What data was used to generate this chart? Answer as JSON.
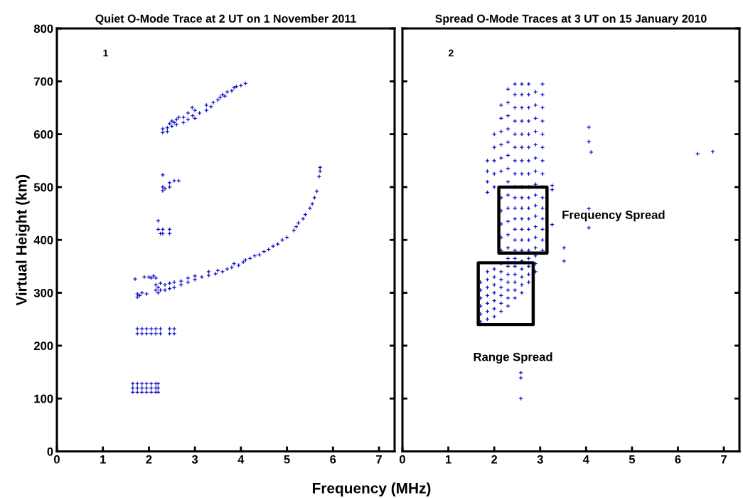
{
  "chart_data": [
    {
      "type": "scatter",
      "title": "Quiet O-Mode Trace at 2 UT on 1 November 2011",
      "xlabel": "Frequency (MHz)",
      "ylabel": "Virtual Height (km)",
      "xlim": [
        0,
        7.34
      ],
      "xticks": [
        0,
        1,
        2,
        3,
        4,
        5,
        6,
        7
      ],
      "ylim": [
        0,
        800
      ],
      "yticks": [
        0,
        100,
        200,
        300,
        400,
        500,
        600,
        700,
        800
      ],
      "grid": false,
      "marker": "cross",
      "annotations": [
        "1"
      ],
      "series": [
        {
          "color": "#1010c8",
          "x": [
            2.3,
            2.3,
            2.4,
            2.4,
            2.45,
            2.5,
            2.5,
            2.55,
            2.6,
            2.6,
            2.65,
            2.75,
            2.75,
            2.85,
            2.85,
            2.94,
            2.95,
            3.0,
            3.0,
            3.1,
            3.25,
            3.25,
            3.35,
            3.4,
            3.5,
            3.55,
            3.6,
            3.65,
            3.7,
            3.8,
            3.85,
            3.9,
            4.0,
            4.1,
            2.3,
            2.3,
            2.3,
            2.35,
            2.45,
            2.45,
            2.55,
            2.65,
            2.2,
            2.2,
            2.25,
            2.3,
            2.3,
            2.45,
            2.45,
            2.15,
            2.15,
            2.2,
            2.2,
            2.25,
            2.25,
            2.35,
            2.35,
            2.45,
            2.45,
            2.55,
            2.55,
            2.7,
            2.7,
            2.85,
            2.85,
            3.0,
            3.0,
            3.15,
            3.3,
            3.3,
            3.45,
            3.5,
            3.6,
            3.7,
            3.8,
            3.85,
            3.95,
            4.05,
            4.1,
            4.2,
            4.3,
            4.4,
            4.5,
            4.6,
            4.7,
            4.8,
            4.9,
            5.0,
            5.15,
            5.2,
            5.25,
            5.35,
            5.4,
            5.5,
            5.55,
            5.6,
            5.65,
            5.7,
            5.72,
            5.72,
            1.7,
            1.75,
            1.75,
            1.8,
            1.85,
            1.9,
            1.95,
            2.0,
            2.05,
            2.1,
            2.15,
            1.75,
            1.75,
            1.85,
            1.85,
            1.95,
            1.95,
            2.05,
            2.05,
            2.15,
            2.15,
            2.25,
            2.25,
            2.45,
            2.45,
            2.55,
            2.55,
            1.65,
            1.65,
            1.65,
            1.75,
            1.75,
            1.75,
            1.85,
            1.85,
            1.85,
            1.95,
            1.95,
            1.95,
            2.05,
            2.05,
            2.05,
            2.15,
            2.15,
            2.15,
            2.2,
            2.2,
            2.2
          ],
          "values": [
            603,
            610,
            605,
            612,
            620,
            615,
            625,
            622,
            628,
            618,
            632,
            632,
            622,
            628,
            640,
            650,
            635,
            630,
            645,
            640,
            645,
            655,
            652,
            660,
            665,
            670,
            675,
            672,
            680,
            682,
            688,
            690,
            692,
            696,
            523,
            500,
            493,
            497,
            500,
            508,
            512,
            512,
            436,
            420,
            412,
            420,
            412,
            420,
            412,
            305,
            315,
            300,
            310,
            305,
            318,
            305,
            315,
            308,
            318,
            310,
            320,
            315,
            322,
            320,
            328,
            325,
            332,
            330,
            333,
            340,
            336,
            342,
            340,
            345,
            348,
            355,
            352,
            358,
            362,
            365,
            370,
            372,
            378,
            382,
            388,
            392,
            400,
            405,
            418,
            425,
            432,
            440,
            448,
            460,
            468,
            480,
            492,
            520,
            530,
            537,
            326,
            292,
            298,
            295,
            300,
            330,
            298,
            330,
            328,
            332,
            328,
            223,
            232,
            223,
            232,
            223,
            232,
            223,
            232,
            223,
            232,
            223,
            232,
            223,
            232,
            223,
            232,
            112,
            120,
            128,
            112,
            120,
            128,
            112,
            120,
            128,
            112,
            120,
            128,
            112,
            120,
            128,
            112,
            120,
            128,
            112,
            120,
            128
          ]
        }
      ]
    },
    {
      "type": "scatter",
      "title": "Spread O-Mode Traces at 3 UT on 15 January 2010",
      "xlim": [
        0,
        7.34
      ],
      "xticks": [
        0,
        1,
        2,
        3,
        4,
        5,
        6,
        7
      ],
      "ylim": [
        0,
        800
      ],
      "yticks": [
        0,
        100,
        200,
        300,
        400,
        500,
        600,
        700,
        800
      ],
      "tick_labels": "x",
      "grid": false,
      "marker": "cross",
      "annotations": [
        "2",
        "Frequency Spread",
        "Range Spread"
      ],
      "series": [
        {
          "color": "#1010c8",
          "x": [
            1.7,
            1.7,
            1.7,
            1.7,
            1.7,
            1.7,
            1.85,
            1.85,
            1.85,
            1.85,
            1.85,
            1.85,
            1.85,
            1.85,
            1.85,
            1.85,
            1.85,
            2.0,
            2.0,
            2.0,
            2.0,
            2.0,
            2.0,
            2.0,
            2.0,
            2.0,
            2.0,
            2.0,
            2.0,
            2.15,
            2.15,
            2.15,
            2.15,
            2.15,
            2.15,
            2.15,
            2.15,
            2.15,
            2.15,
            2.15,
            2.15,
            2.15,
            2.15,
            2.15,
            2.15,
            2.15,
            2.15,
            2.3,
            2.3,
            2.3,
            2.3,
            2.3,
            2.3,
            2.3,
            2.3,
            2.3,
            2.3,
            2.3,
            2.3,
            2.3,
            2.3,
            2.3,
            2.3,
            2.3,
            2.3,
            2.3,
            2.3,
            2.45,
            2.45,
            2.45,
            2.45,
            2.45,
            2.45,
            2.45,
            2.45,
            2.45,
            2.45,
            2.45,
            2.45,
            2.45,
            2.45,
            2.45,
            2.45,
            2.45,
            2.45,
            2.45,
            2.45,
            2.45,
            2.6,
            2.6,
            2.6,
            2.6,
            2.6,
            2.6,
            2.6,
            2.6,
            2.6,
            2.6,
            2.6,
            2.6,
            2.6,
            2.6,
            2.6,
            2.6,
            2.6,
            2.6,
            2.6,
            2.6,
            2.75,
            2.75,
            2.75,
            2.75,
            2.75,
            2.75,
            2.75,
            2.75,
            2.75,
            2.75,
            2.75,
            2.75,
            2.75,
            2.75,
            2.75,
            2.75,
            2.75,
            2.75,
            2.75,
            2.9,
            2.9,
            2.9,
            2.9,
            2.9,
            2.9,
            2.9,
            2.9,
            2.9,
            2.9,
            2.9,
            2.9,
            2.9,
            2.9,
            2.9,
            2.9,
            2.9,
            3.05,
            3.05,
            3.05,
            3.05,
            3.05,
            3.05,
            3.05,
            3.05,
            3.05,
            3.05,
            3.05,
            3.05,
            3.05,
            3.05,
            3.05,
            4.06,
            4.06,
            4.11,
            6.43,
            6.76,
            4.06,
            4.06,
            3.52,
            3.52,
            3.26,
            3.26,
            3.26,
            2.58,
            2.58,
            2.58
          ],
          "values": [
            245,
            260,
            275,
            290,
            305,
            320,
            250,
            265,
            280,
            295,
            310,
            325,
            340,
            490,
            510,
            530,
            550,
            255,
            270,
            285,
            300,
            315,
            330,
            345,
            500,
            525,
            550,
            575,
            600,
            265,
            280,
            295,
            310,
            325,
            340,
            355,
            380,
            405,
            430,
            455,
            480,
            530,
            555,
            580,
            605,
            630,
            655,
            275,
            290,
            305,
            320,
            335,
            350,
            365,
            385,
            410,
            435,
            460,
            485,
            510,
            535,
            560,
            585,
            610,
            635,
            660,
            685,
            290,
            305,
            320,
            335,
            350,
            365,
            380,
            400,
            420,
            440,
            460,
            480,
            500,
            525,
            550,
            575,
            600,
            625,
            650,
            675,
            695,
            300,
            315,
            330,
            345,
            360,
            380,
            400,
            420,
            440,
            460,
            480,
            500,
            525,
            550,
            575,
            600,
            625,
            650,
            675,
            695,
            320,
            335,
            350,
            365,
            380,
            400,
            420,
            440,
            460,
            480,
            500,
            525,
            550,
            575,
            600,
            625,
            650,
            675,
            695,
            340,
            355,
            370,
            385,
            405,
            425,
            445,
            465,
            485,
            505,
            530,
            555,
            580,
            605,
            630,
            655,
            680,
            380,
            400,
            420,
            440,
            460,
            480,
            500,
            525,
            550,
            575,
            600,
            625,
            650,
            675,
            695,
            613,
            586,
            566,
            563,
            567,
            459,
            423,
            385,
            360,
            503,
            495,
            429,
            149,
            139,
            100
          ]
        }
      ]
    }
  ]
}
